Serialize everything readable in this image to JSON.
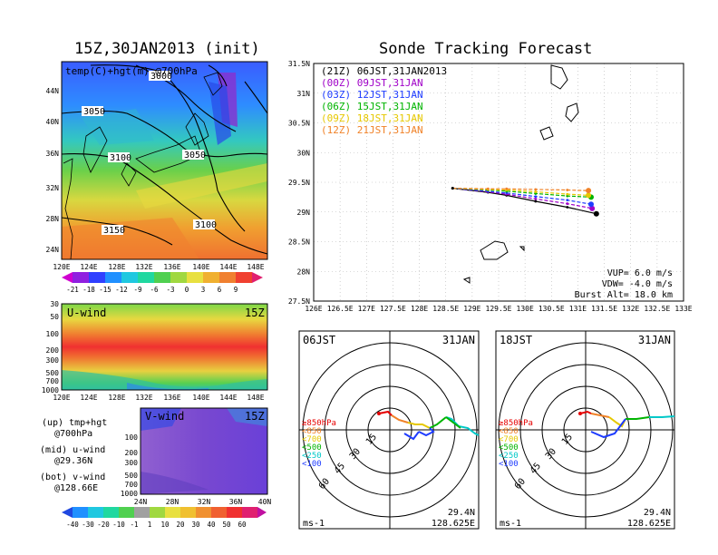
{
  "left": {
    "title": "15Z,30JAN2013 (init)",
    "map": {
      "label": "temp(C)+hgt(m) @700hPa",
      "lat_ticks": [
        "44N",
        "40N",
        "36N",
        "32N",
        "28N",
        "24N"
      ],
      "lon_ticks": [
        "120E",
        "124E",
        "128E",
        "132E",
        "136E",
        "140E",
        "144E",
        "148E"
      ],
      "contours": [
        "3000",
        "3050",
        "3100",
        "3050",
        "3100",
        "3150"
      ]
    },
    "temp_colorbar": [
      "-21",
      "-18",
      "-15",
      "-12",
      "-9",
      "-6",
      "-3",
      "0",
      "3",
      "6",
      "9"
    ],
    "uwind": {
      "label": "U-wind",
      "time": "15Z",
      "levels": [
        "30",
        "50",
        "100",
        "200",
        "300",
        "500",
        "700",
        "1000"
      ],
      "lon_ticks": [
        "120E",
        "124E",
        "128E",
        "132E",
        "136E",
        "140E",
        "144E",
        "148E"
      ]
    },
    "vwind": {
      "label": "V-wind",
      "time": "15Z",
      "levels": [
        "100",
        "200",
        "300",
        "500",
        "700",
        "1000"
      ],
      "lat_ticks": [
        "24N",
        "28N",
        "32N",
        "36N",
        "40N"
      ]
    },
    "notes": [
      {
        "line1": "(up) tmp+hgt",
        "line2": "@700hPa"
      },
      {
        "line1": "(mid) u-wind",
        "line2": "@29.36N"
      },
      {
        "line1": "(bot) v-wind",
        "line2": "@128.66E"
      }
    ],
    "wind_colorbar": [
      "-40",
      "-30",
      "-20",
      "-10",
      "-1",
      "1",
      "10",
      "20",
      "30",
      "40",
      "50",
      "60"
    ]
  },
  "right": {
    "title": "Sonde Tracking Forecast",
    "legend": [
      {
        "text": "(21Z) 06JST,31JAN2013",
        "color": "#000000"
      },
      {
        "text": "(00Z) 09JST,31JAN",
        "color": "#a000c8"
      },
      {
        "text": "(03Z) 12JST,31JAN",
        "color": "#1e3cff"
      },
      {
        "text": "(06Z) 15JST,31JAN",
        "color": "#00b400"
      },
      {
        "text": "(09Z) 18JST,31JAN",
        "color": "#e6c800"
      },
      {
        "text": "(12Z) 21JST,31JAN",
        "color": "#f08228"
      }
    ],
    "params": [
      "VUP= 6.0 m/s",
      "VDW= -4.0 m/s",
      "Burst Alt= 18.0 km"
    ],
    "hodo1": {
      "left": "06JST",
      "right": "31JAN",
      "lat": "29.4N",
      "lon": "128.625E",
      "unit": "ms-1"
    },
    "hodo2": {
      "left": "18JST",
      "right": "31JAN",
      "lat": "29.4N",
      "lon": "128.625E",
      "unit": "ms-1"
    },
    "ring_labels": [
      "15",
      "30",
      "45",
      "60"
    ],
    "hodo_legend": [
      {
        "text": "≥850hPa",
        "color": "#e60000"
      },
      {
        "text": "<850",
        "color": "#f08228"
      },
      {
        "text": "<700",
        "color": "#e6c800"
      },
      {
        "text": "<500",
        "color": "#00b400"
      },
      {
        "text": "<250",
        "color": "#00c8c8"
      },
      {
        "text": "<100",
        "color": "#1e3cff"
      }
    ]
  },
  "chart_data": [
    {
      "type": "line",
      "title": "Sonde Tracking Forecast",
      "xlabel": "",
      "ylabel": "",
      "xlim": [
        126,
        133
      ],
      "ylim": [
        27.5,
        31.5
      ],
      "x_ticks": [
        "126E",
        "126.5E",
        "127E",
        "127.5E",
        "128E",
        "128.5E",
        "129E",
        "129.5E",
        "130E",
        "130.5E",
        "131E",
        "131.5E",
        "132E",
        "132.5E",
        "133E"
      ],
      "y_ticks": [
        "27.5N",
        "28N",
        "28.5N",
        "29N",
        "29.5N",
        "30N",
        "30.5N",
        "31N",
        "31.5N"
      ],
      "launch": [
        128.63,
        29.4
      ],
      "series": [
        {
          "name": "(21Z) 06JST,31JAN2013",
          "color": "#000000",
          "x": [
            128.63,
            129.3,
            129.65,
            130.2,
            130.8,
            131.35
          ],
          "y": [
            29.4,
            29.33,
            29.28,
            29.18,
            29.08,
            28.97
          ]
        },
        {
          "name": "(00Z) 09JST,31JAN",
          "color": "#a000c8",
          "x": [
            128.63,
            129.3,
            129.65,
            130.2,
            130.8,
            131.27
          ],
          "y": [
            29.4,
            29.34,
            29.3,
            29.22,
            29.14,
            29.06
          ]
        },
        {
          "name": "(03Z) 12JST,31JAN",
          "color": "#1e3cff",
          "x": [
            128.63,
            129.3,
            129.65,
            130.2,
            130.8,
            131.25
          ],
          "y": [
            29.4,
            29.35,
            29.32,
            29.26,
            29.2,
            29.13
          ]
        },
        {
          "name": "(06Z) 15JST,31JAN",
          "color": "#00b400",
          "x": [
            128.63,
            129.3,
            129.65,
            130.2,
            130.8,
            131.25
          ],
          "y": [
            29.4,
            29.37,
            29.35,
            29.31,
            29.27,
            29.25
          ]
        },
        {
          "name": "(09Z) 18JST,31JAN",
          "color": "#e6c800",
          "x": [
            128.63,
            129.3,
            129.65,
            130.2,
            130.8,
            131.2
          ],
          "y": [
            29.4,
            29.38,
            29.37,
            29.34,
            29.3,
            29.28
          ]
        },
        {
          "name": "(12Z) 21JST,31JAN",
          "color": "#f08228",
          "x": [
            128.63,
            129.3,
            129.65,
            130.2,
            130.8,
            131.2
          ],
          "y": [
            29.4,
            29.39,
            29.39,
            29.38,
            29.37,
            29.36
          ]
        }
      ],
      "grid": true
    }
  ]
}
